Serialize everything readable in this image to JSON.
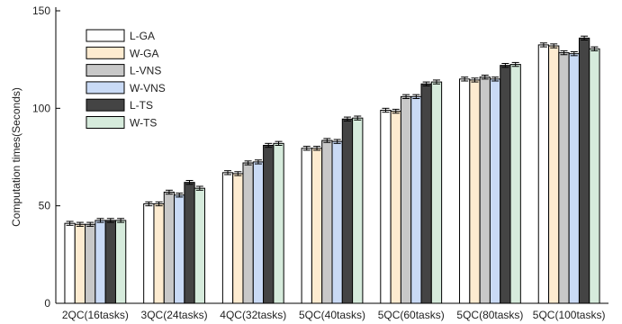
{
  "chart_data": {
    "type": "bar",
    "title": "",
    "xlabel": "",
    "ylabel": "Computation times(Seconds)",
    "ylim": [
      0,
      150
    ],
    "yticks": [
      0,
      50,
      100,
      150
    ],
    "grid": false,
    "legend_position": "top-left",
    "error_bars": true,
    "categories": [
      "2QC(16tasks)",
      "3QC(24tasks)",
      "4QC(32tasks)",
      "5QC(40tasks)",
      "5QC(60tasks)",
      "5QC(80tasks)",
      "5QC(100tasks)"
    ],
    "series": [
      {
        "name": "L-GA",
        "color": "#ffffff",
        "values": [
          41,
          51,
          67,
          79.5,
          99,
          115,
          132.5
        ]
      },
      {
        "name": "W-GA",
        "color": "#fdebd0",
        "values": [
          40.5,
          51,
          66.5,
          79.5,
          98.5,
          114.5,
          132
        ]
      },
      {
        "name": "L-VNS",
        "color": "#c8c8c8",
        "values": [
          40.5,
          57,
          72,
          83.5,
          106,
          116,
          128.5
        ]
      },
      {
        "name": "W-VNS",
        "color": "#c9daf5",
        "values": [
          42.5,
          55.5,
          72.5,
          83,
          106,
          115,
          128
        ]
      },
      {
        "name": "L-TS",
        "color": "#444444",
        "values": [
          42.5,
          62,
          81,
          94.5,
          112.5,
          122,
          136
        ]
      },
      {
        "name": "W-TS",
        "color": "#d6ebdc",
        "values": [
          42.5,
          59,
          82,
          95,
          113.5,
          122.5,
          130.5
        ]
      }
    ]
  }
}
